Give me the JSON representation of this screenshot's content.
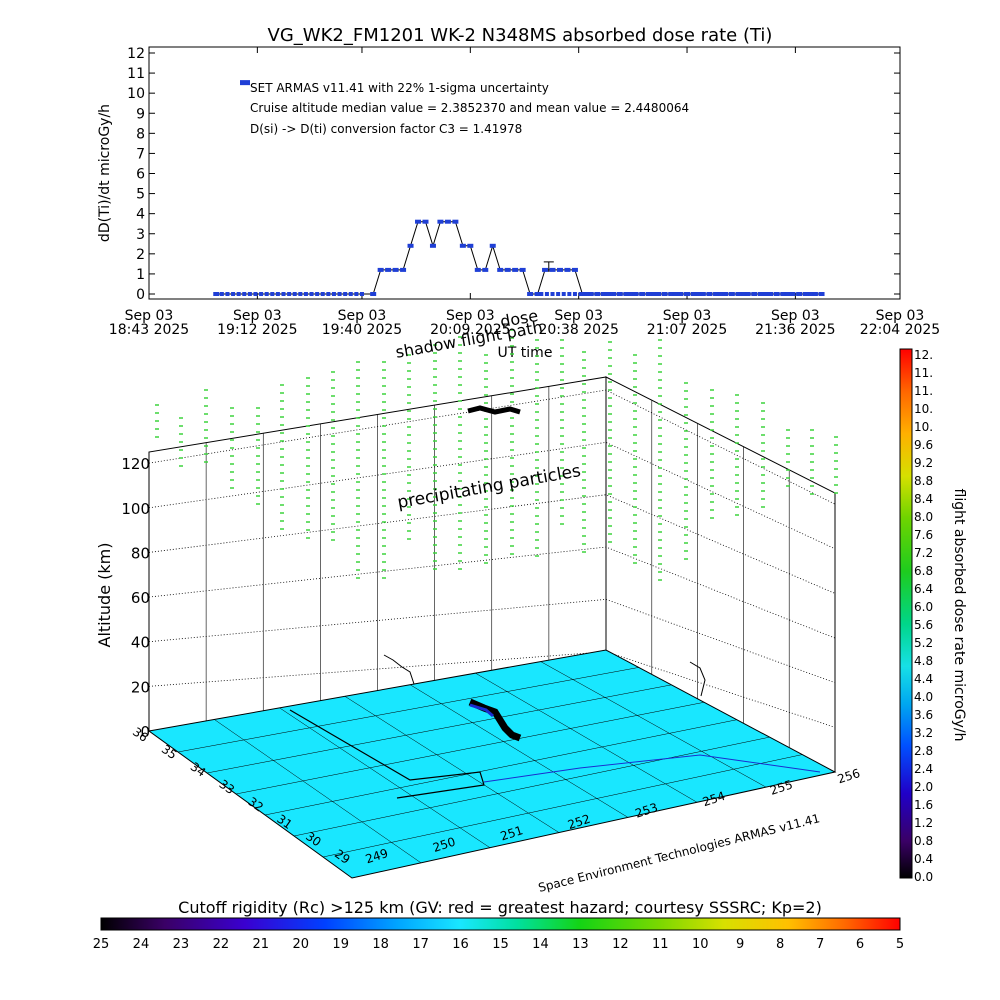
{
  "title": "VG_WK2_FM1201    WK-2 N348MS absorbed dose rate (Ti)",
  "colors": {
    "dose_series": "#1f3fd6",
    "surface": "#19e7ff",
    "precip_marks": "#3cd23c",
    "track": "#000000",
    "axis": "#000000"
  },
  "chart_data": [
    {
      "type": "line",
      "title": "VG_WK2_FM1201    WK-2 N348MS absorbed dose rate (Ti)",
      "ylabel": "dD(Ti)/dt microGy/h",
      "xlabel": "UT time",
      "ylim": [
        0,
        12
      ],
      "yticks": [
        "0",
        "1",
        "2",
        "3",
        "4",
        "5",
        "6",
        "7",
        "8",
        "9",
        "10",
        "11",
        "12"
      ],
      "xlim_minutes": [
        0,
        201
      ],
      "xticks": [
        {
          "line1": "Sep 03",
          "line2": "18:43 2025",
          "min": 0
        },
        {
          "line1": "Sep 03",
          "line2": "19:12 2025",
          "min": 29
        },
        {
          "line1": "Sep 03",
          "line2": "19:40 2025",
          "min": 57
        },
        {
          "line1": "Sep 03",
          "line2": "20:09 2025",
          "min": 86
        },
        {
          "line1": "Sep 03",
          "line2": "20:38 2025",
          "min": 115
        },
        {
          "line1": "Sep 03",
          "line2": "21:07 2025",
          "min": 144
        },
        {
          "line1": "Sep 03",
          "line2": "21:36 2025",
          "min": 173
        },
        {
          "line1": "Sep 03",
          "line2": "22:04 2025",
          "min": 201
        }
      ],
      "annotations": [
        "SET ARMAS v11.41 with 22% 1-sigma uncertainty",
        "Cruise altitude median value = 2.3852370 and mean value = 2.4480064",
        "D(si) -> D(ti) conversion factor C3 = 1.41978"
      ],
      "overlay_labels": [
        "shadow flight path",
        "dose"
      ],
      "legend_marker_value": 10.5,
      "series": [
        {
          "x_minutes": [
            18,
            60,
            62,
            64,
            66,
            68,
            70,
            72,
            74,
            76,
            78,
            80,
            82,
            84,
            86,
            88,
            90,
            92,
            94,
            96,
            98,
            100,
            102,
            104,
            106,
            108,
            110,
            112,
            114,
            116,
            118,
            120,
            122,
            124,
            126,
            128,
            130,
            132,
            134,
            136,
            138,
            140,
            142,
            144,
            146,
            148,
            150,
            152,
            154,
            156,
            158,
            160,
            162,
            164,
            166,
            168,
            170,
            172,
            174,
            176,
            178,
            180
          ],
          "values": [
            0,
            0,
            1.2,
            1.2,
            1.2,
            1.2,
            2.4,
            3.6,
            3.6,
            2.4,
            3.6,
            3.6,
            3.6,
            2.4,
            2.4,
            1.2,
            1.2,
            2.4,
            1.2,
            1.2,
            1.2,
            1.2,
            0,
            0,
            1.2,
            1.2,
            1.2,
            1.2,
            1.2,
            0,
            0,
            0,
            0,
            0,
            0,
            0,
            0,
            0,
            0,
            0,
            0,
            0,
            0,
            0,
            0,
            0,
            0,
            0,
            0,
            0,
            0,
            0,
            0,
            0,
            0,
            0,
            0,
            0,
            0,
            0,
            0,
            0
          ]
        }
      ]
    },
    {
      "type": "scatter",
      "title": "",
      "zlabel": "Altitude (km)",
      "zticks": [
        "0",
        "20",
        "40",
        "60",
        "80",
        "100",
        "120"
      ],
      "lat_ticks": [
        "36",
        "35",
        "34",
        "33",
        "32",
        "31",
        "30",
        "29"
      ],
      "lon_ticks": [
        "249",
        "250",
        "251",
        "252",
        "253",
        "254",
        "255",
        "256"
      ],
      "surface_label": "Space Environment Technologies ARMAS v11.41",
      "annotation": "precipitating particles",
      "colorbar": {
        "label": "flight absorbed dose rate microGy/h",
        "range": [
          0,
          12
        ],
        "ticks": [
          "12.",
          "11.",
          "11.",
          "10.",
          "10.",
          "9.6",
          "9.2",
          "8.8",
          "8.4",
          "8.0",
          "7.6",
          "7.2",
          "6.8",
          "6.4",
          "6.0",
          "5.6",
          "5.2",
          "4.8",
          "4.4",
          "4.0",
          "3.6",
          "3.2",
          "2.8",
          "2.4",
          "2.0",
          "1.6",
          "1.2",
          "0.8",
          "0.4",
          "0.0"
        ]
      },
      "rigidity_bar": {
        "label": "Cutoff rigidity (Rc) >125 km (GV: red = greatest hazard; courtesy SSSRC; Kp=2)",
        "ticks": [
          "25",
          "24",
          "23",
          "22",
          "21",
          "20",
          "19",
          "18",
          "17",
          "16",
          "15",
          "14",
          "13",
          "12",
          "11",
          "10",
          "9",
          "8",
          "7",
          "6",
          "5"
        ]
      }
    }
  ]
}
